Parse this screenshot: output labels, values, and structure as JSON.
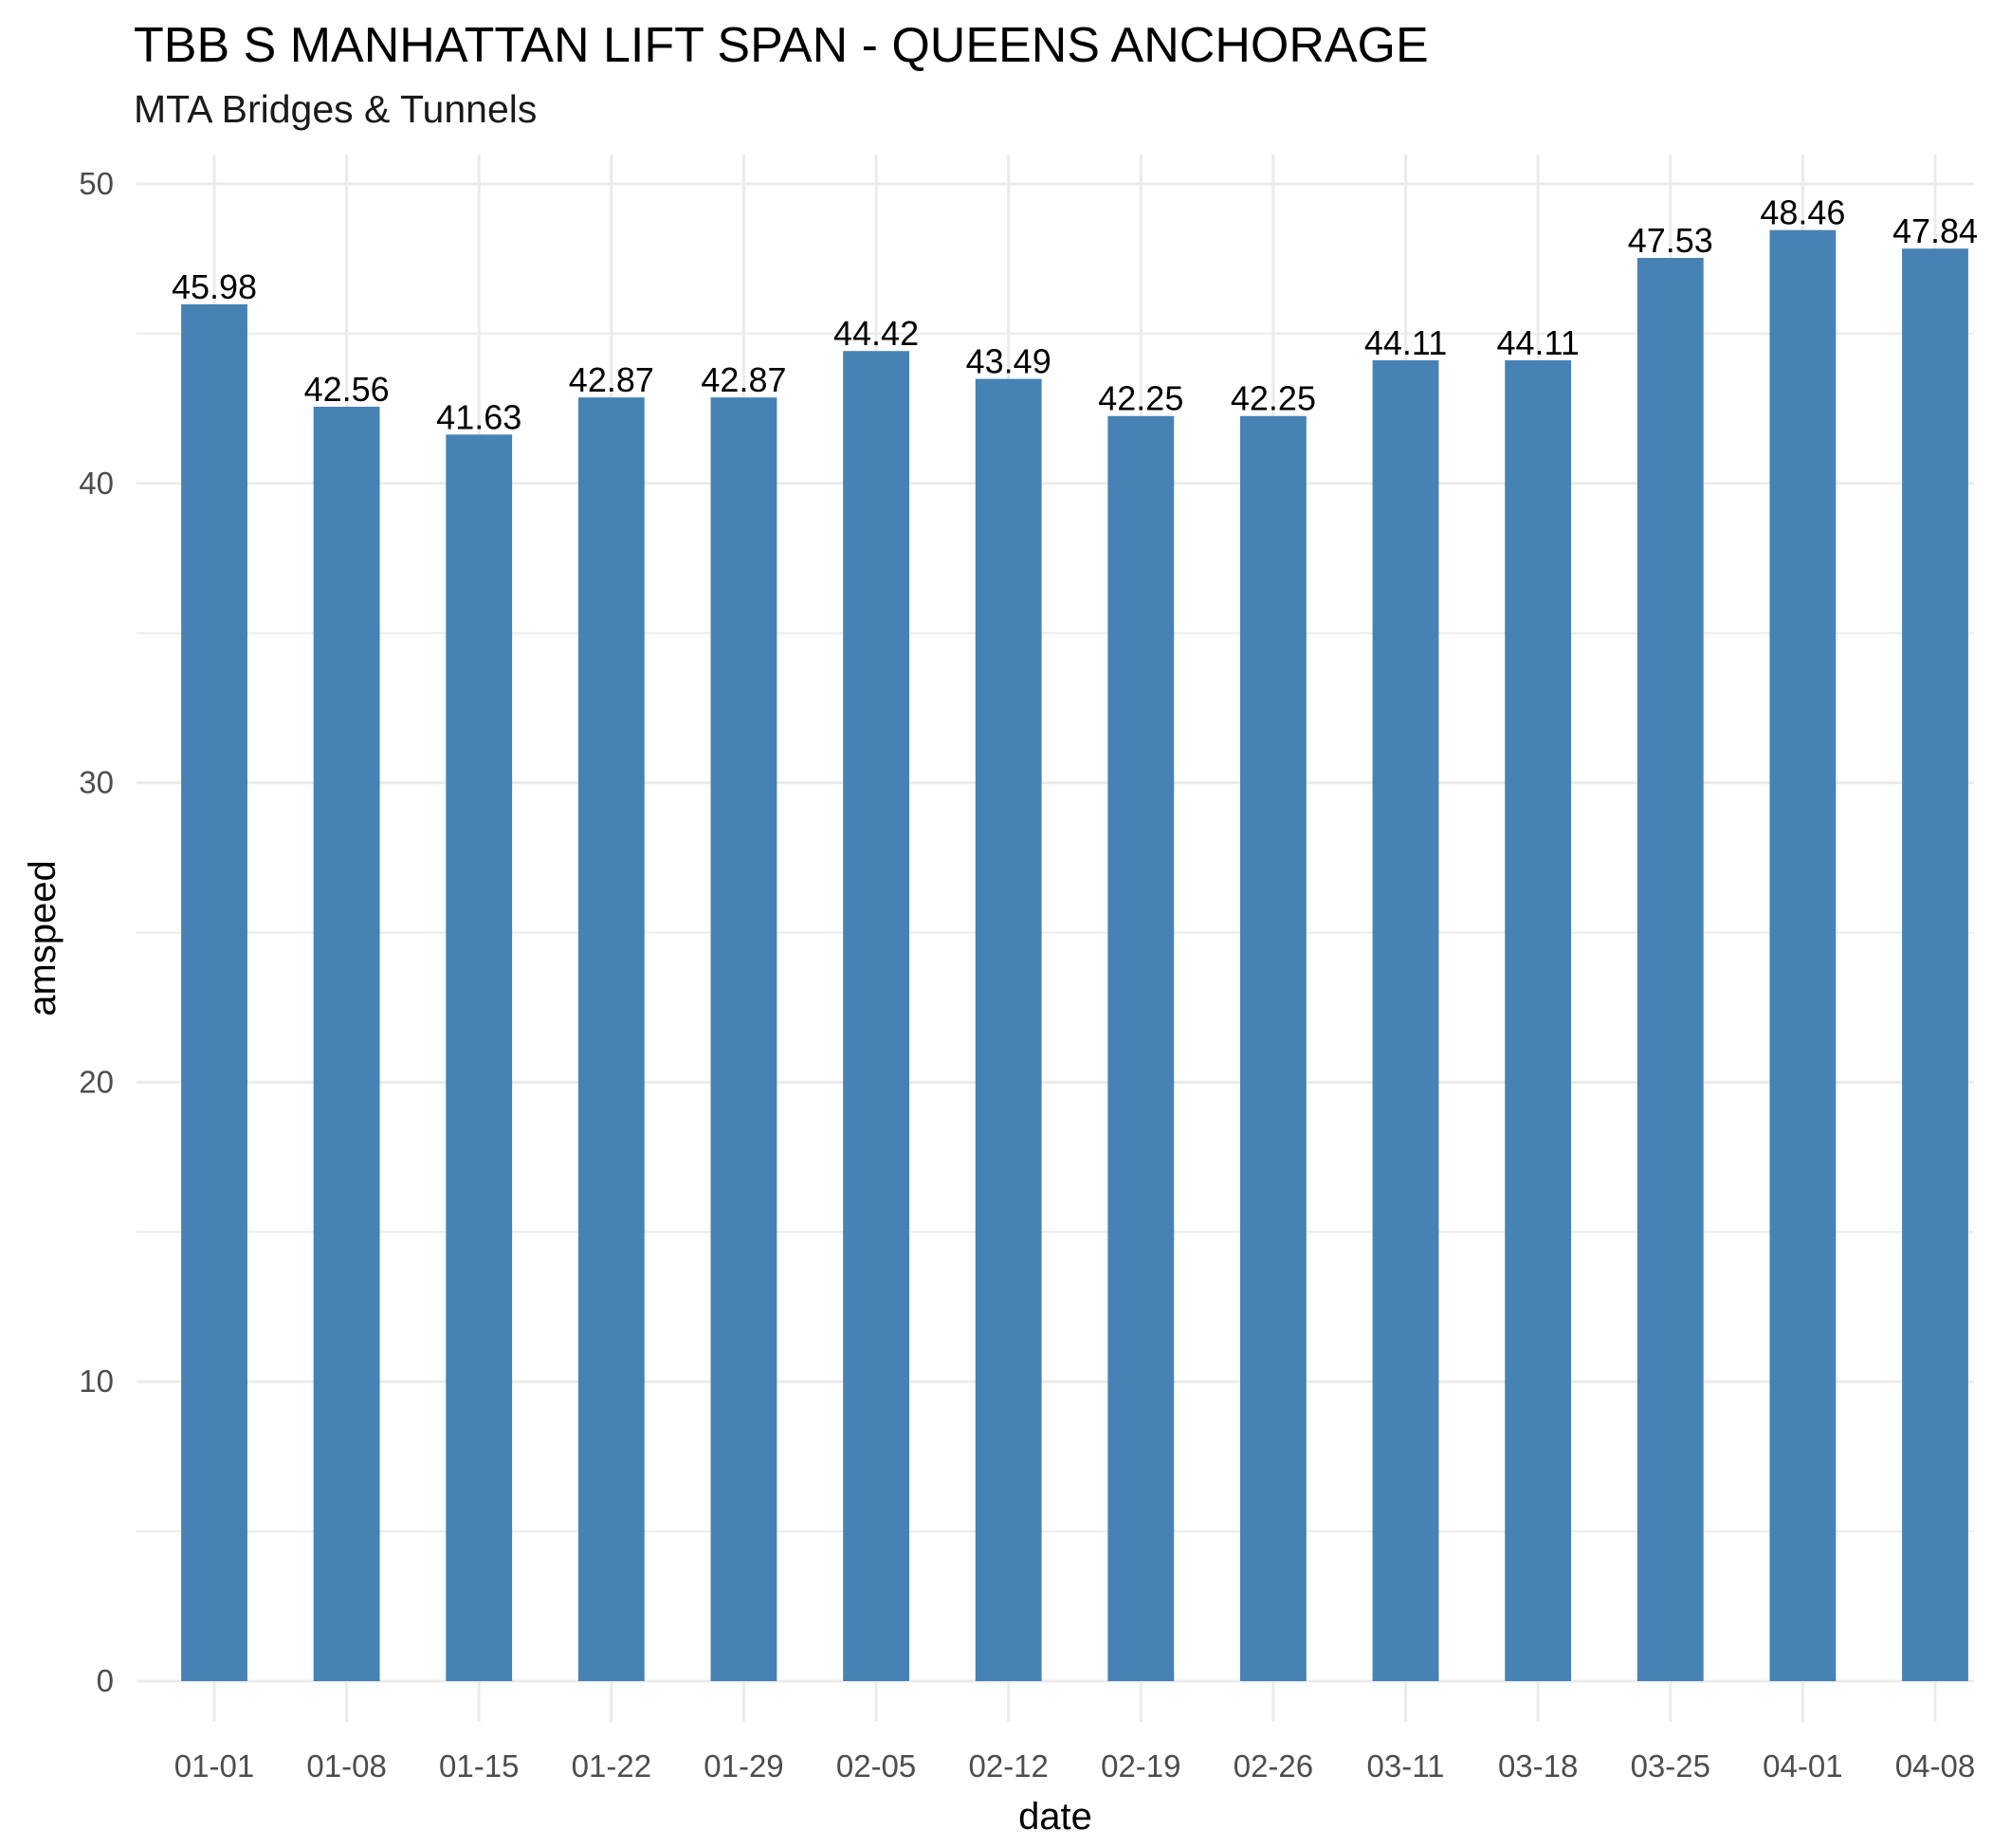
{
  "chart_data": {
    "type": "bar",
    "title": "TBB S MANHATTAN LIFT SPAN - QUEENS ANCHORAGE",
    "subtitle": "MTA Bridges & Tunnels",
    "xlabel": "date",
    "ylabel": "amspeed",
    "categories": [
      "01-01",
      "01-08",
      "01-15",
      "01-22",
      "01-29",
      "02-05",
      "02-12",
      "02-19",
      "02-26",
      "03-11",
      "03-18",
      "03-25",
      "04-01",
      "04-08"
    ],
    "values": [
      45.98,
      42.56,
      41.63,
      42.87,
      42.87,
      44.42,
      43.49,
      42.25,
      42.25,
      44.11,
      44.11,
      47.53,
      48.46,
      47.84
    ],
    "value_labels": [
      "45.98",
      "42.56",
      "41.63",
      "42.87",
      "42.87",
      "44.42",
      "43.49",
      "42.25",
      "42.25",
      "44.11",
      "44.11",
      "47.53",
      "48.46",
      "47.84"
    ],
    "ylim": [
      0,
      50
    ],
    "y_ticks": [
      "0",
      "10",
      "20",
      "30",
      "40",
      "50"
    ],
    "grid": true,
    "legend": "none",
    "bar_color": "#4682B4",
    "grid_color": "#EBEBEB"
  }
}
